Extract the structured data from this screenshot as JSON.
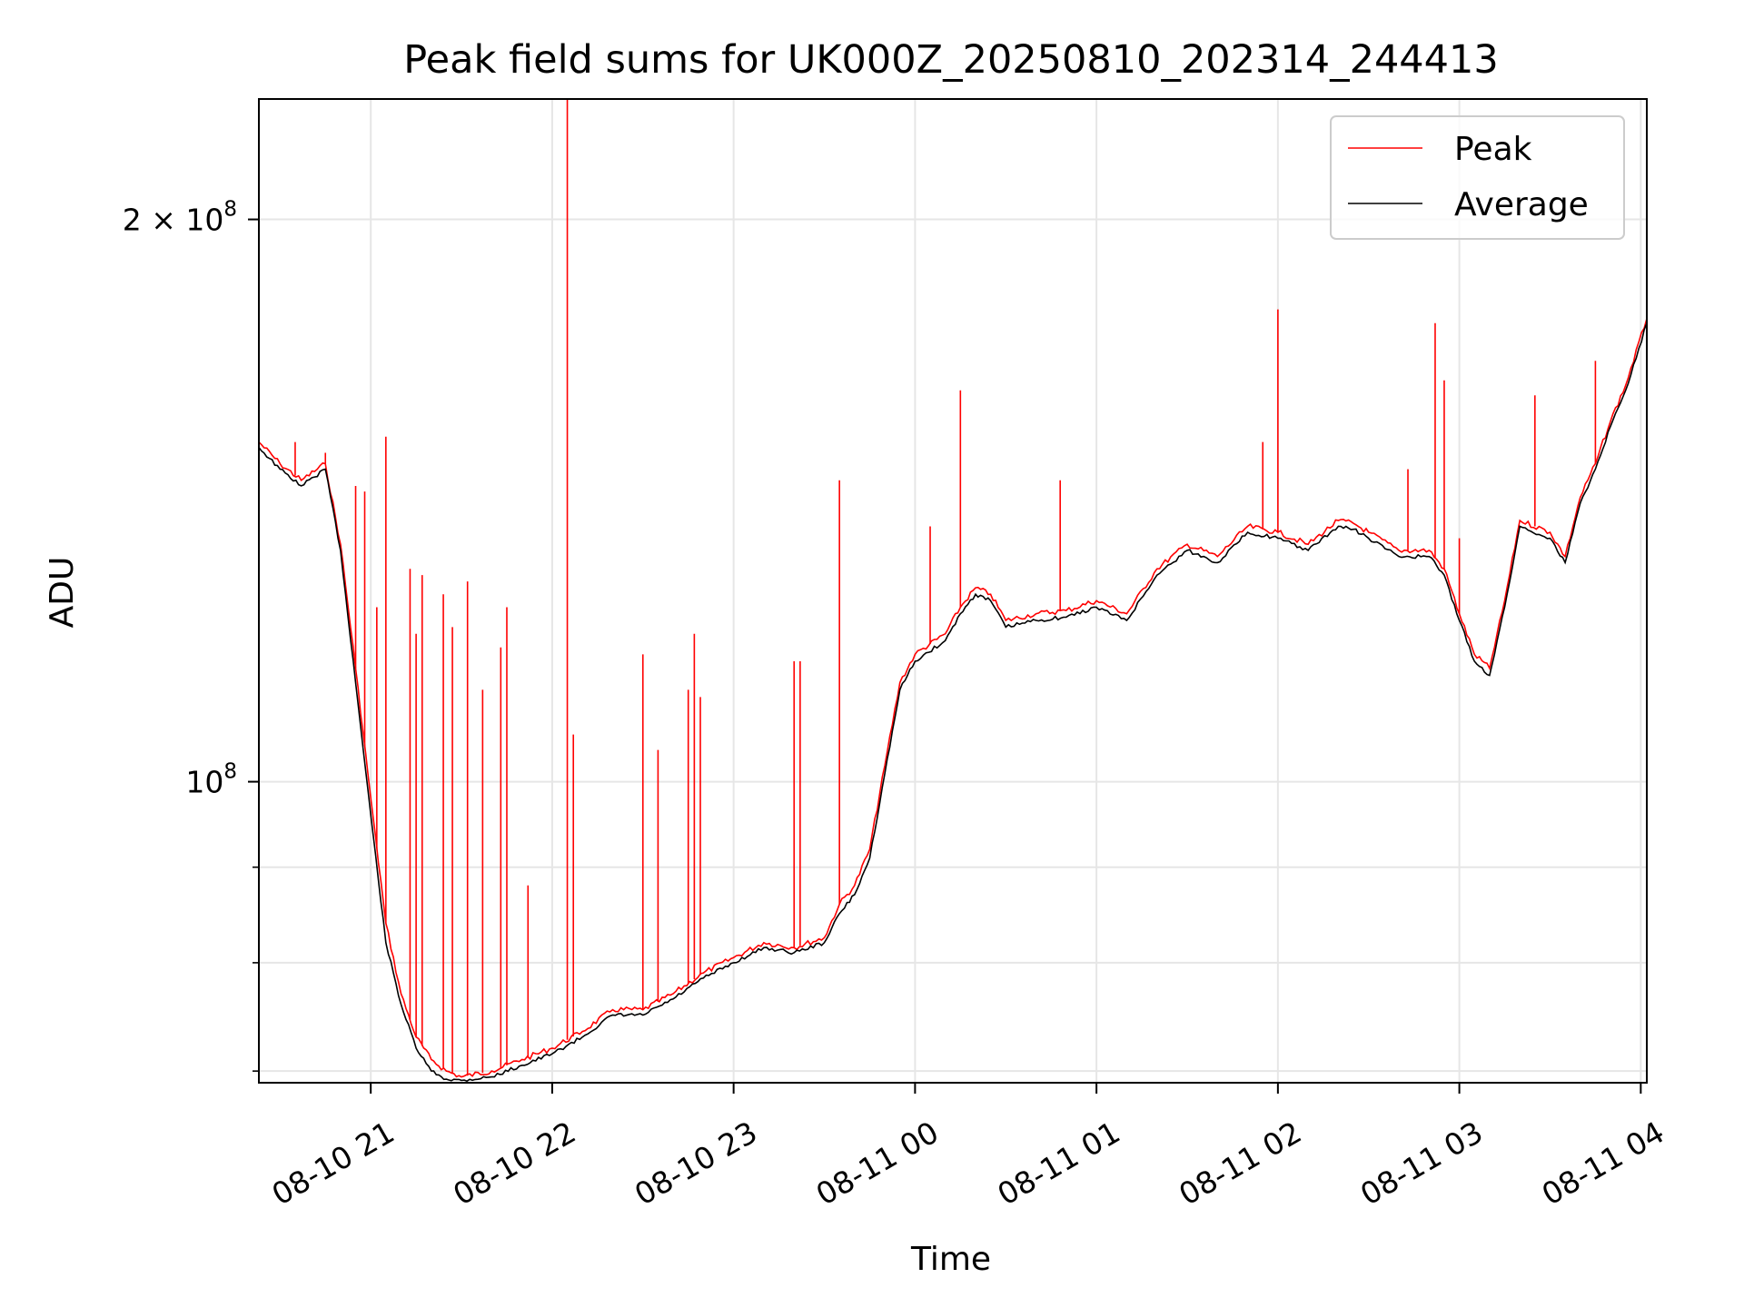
{
  "chart_data": {
    "type": "line",
    "title": "Peak field sums for UK000Z_20250810_202314_244413",
    "xlabel": "Time",
    "ylabel": "ADU",
    "x_range": [
      "2025-08-10 20:23",
      "2025-08-11 04:02"
    ],
    "ylim": [
      69000000,
      232000000
    ],
    "yscale": "log",
    "grid": true,
    "legend_position": "upper-right",
    "x_ticks": [
      "08-10 21",
      "08-10 22",
      "08-10 23",
      "08-11 00",
      "08-11 01",
      "08-11 02",
      "08-11 03",
      "08-11 04"
    ],
    "x_tick_times": [
      "2025-08-10 21:00",
      "2025-08-10 22:00",
      "2025-08-10 23:00",
      "2025-08-11 00:00",
      "2025-08-11 01:00",
      "2025-08-11 02:00",
      "2025-08-11 03:00",
      "2025-08-11 04:00"
    ],
    "y_major_ticks": [
      {
        "value": 100000000,
        "base": "10",
        "exp": "8"
      },
      {
        "value": 200000000,
        "base": "2 × 10",
        "exp": "8"
      }
    ],
    "y_minor_ticks": [
      70000000,
      80000000,
      90000000,
      300000000
    ],
    "series": [
      {
        "name": "Peak",
        "color": "#ff0000",
        "times": [
          "2025-08-10 20:23",
          "2025-08-10 20:30",
          "2025-08-10 20:37",
          "2025-08-10 20:45",
          "2025-08-10 20:50",
          "2025-08-10 20:55",
          "2025-08-10 21:00",
          "2025-08-10 21:05",
          "2025-08-10 21:10",
          "2025-08-10 21:15",
          "2025-08-10 21:20",
          "2025-08-10 21:25",
          "2025-08-10 21:30",
          "2025-08-10 21:40",
          "2025-08-10 21:50",
          "2025-08-10 22:00",
          "2025-08-10 22:10",
          "2025-08-10 22:20",
          "2025-08-10 22:30",
          "2025-08-10 22:40",
          "2025-08-10 22:50",
          "2025-08-10 23:00",
          "2025-08-10 23:10",
          "2025-08-10 23:20",
          "2025-08-10 23:30",
          "2025-08-10 23:35",
          "2025-08-10 23:40",
          "2025-08-10 23:45",
          "2025-08-10 23:50",
          "2025-08-10 23:55",
          "2025-08-11 00:00",
          "2025-08-11 00:10",
          "2025-08-11 00:15",
          "2025-08-11 00:20",
          "2025-08-11 00:25",
          "2025-08-11 00:30",
          "2025-08-11 00:40",
          "2025-08-11 00:50",
          "2025-08-11 01:00",
          "2025-08-11 01:10",
          "2025-08-11 01:20",
          "2025-08-11 01:30",
          "2025-08-11 01:40",
          "2025-08-11 01:50",
          "2025-08-11 02:00",
          "2025-08-11 02:10",
          "2025-08-11 02:20",
          "2025-08-11 02:25",
          "2025-08-11 02:30",
          "2025-08-11 02:40",
          "2025-08-11 02:50",
          "2025-08-11 02:55",
          "2025-08-11 03:00",
          "2025-08-11 03:05",
          "2025-08-11 03:10",
          "2025-08-11 03:15",
          "2025-08-11 03:20",
          "2025-08-11 03:30",
          "2025-08-11 03:35",
          "2025-08-11 03:40",
          "2025-08-11 03:45",
          "2025-08-11 03:50",
          "2025-08-11 03:55",
          "2025-08-11 04:02"
        ],
        "values": [
          152000000,
          148000000,
          145000000,
          148000000,
          134000000,
          115000000,
          98000000,
          84000000,
          77000000,
          73000000,
          71000000,
          70000000,
          69500000,
          70000000,
          71000000,
          72000000,
          73500000,
          75500000,
          75500000,
          77000000,
          79000000,
          80500000,
          82000000,
          81500000,
          82500000,
          86000000,
          88000000,
          92000000,
          102000000,
          113000000,
          117000000,
          120000000,
          124000000,
          127000000,
          126000000,
          122000000,
          123000000,
          123500000,
          125000000,
          123000000,
          130000000,
          134000000,
          132000000,
          137000000,
          136000000,
          134000000,
          138000000,
          137500000,
          136000000,
          133000000,
          133000000,
          130000000,
          123000000,
          117000000,
          115000000,
          125000000,
          138000000,
          136000000,
          132000000,
          142000000,
          148000000,
          156000000,
          163000000,
          177000000
        ]
      },
      {
        "name": "Average",
        "color": "#000000",
        "times": [
          "2025-08-10 20:23",
          "2025-08-10 20:30",
          "2025-08-10 20:37",
          "2025-08-10 20:45",
          "2025-08-10 20:50",
          "2025-08-10 20:55",
          "2025-08-10 21:00",
          "2025-08-10 21:05",
          "2025-08-10 21:10",
          "2025-08-10 21:15",
          "2025-08-10 21:20",
          "2025-08-10 21:25",
          "2025-08-10 21:30",
          "2025-08-10 21:40",
          "2025-08-10 21:50",
          "2025-08-10 22:00",
          "2025-08-10 22:10",
          "2025-08-10 22:20",
          "2025-08-10 22:30",
          "2025-08-10 22:40",
          "2025-08-10 22:50",
          "2025-08-10 23:00",
          "2025-08-10 23:10",
          "2025-08-10 23:20",
          "2025-08-10 23:30",
          "2025-08-10 23:35",
          "2025-08-10 23:40",
          "2025-08-10 23:45",
          "2025-08-10 23:50",
          "2025-08-10 23:55",
          "2025-08-11 00:00",
          "2025-08-11 00:10",
          "2025-08-11 00:15",
          "2025-08-11 00:20",
          "2025-08-11 00:25",
          "2025-08-11 00:30",
          "2025-08-11 00:40",
          "2025-08-11 00:50",
          "2025-08-11 01:00",
          "2025-08-11 01:10",
          "2025-08-11 01:20",
          "2025-08-11 01:30",
          "2025-08-11 01:40",
          "2025-08-11 01:50",
          "2025-08-11 02:00",
          "2025-08-11 02:10",
          "2025-08-11 02:20",
          "2025-08-11 02:25",
          "2025-08-11 02:30",
          "2025-08-11 02:40",
          "2025-08-11 02:50",
          "2025-08-11 02:55",
          "2025-08-11 03:00",
          "2025-08-11 03:05",
          "2025-08-11 03:10",
          "2025-08-11 03:15",
          "2025-08-11 03:20",
          "2025-08-11 03:30",
          "2025-08-11 03:35",
          "2025-08-11 03:40",
          "2025-08-11 03:45",
          "2025-08-11 03:50",
          "2025-08-11 03:55",
          "2025-08-11 04:02"
        ],
        "values": [
          151000000,
          147000000,
          144000000,
          147000000,
          133000000,
          113000000,
          96000000,
          82000000,
          76000000,
          72000000,
          70000000,
          69300000,
          69200000,
          69500000,
          70500000,
          71500000,
          73000000,
          75000000,
          75000000,
          76500000,
          78500000,
          80000000,
          81500000,
          81000000,
          82000000,
          85000000,
          87000000,
          91000000,
          101000000,
          112000000,
          116000000,
          119000000,
          123000000,
          126000000,
          125000000,
          121000000,
          122000000,
          122500000,
          124000000,
          122000000,
          129000000,
          133000000,
          131000000,
          136000000,
          135000000,
          133000000,
          137000000,
          136500000,
          135000000,
          132000000,
          132000000,
          129000000,
          122000000,
          116000000,
          114000000,
          124000000,
          137000000,
          135000000,
          131000000,
          141000000,
          147000000,
          155000000,
          162000000,
          176000000
        ]
      }
    ],
    "peak_spikes": [
      {
        "time": "2025-08-10 20:35",
        "value": 152000000
      },
      {
        "time": "2025-08-10 20:45",
        "value": 150000000
      },
      {
        "time": "2025-08-10 20:55",
        "value": 144000000
      },
      {
        "time": "2025-08-10 20:58",
        "value": 143000000
      },
      {
        "time": "2025-08-10 21:02",
        "value": 124000000
      },
      {
        "time": "2025-08-10 21:05",
        "value": 153000000
      },
      {
        "time": "2025-08-10 21:13",
        "value": 130000000
      },
      {
        "time": "2025-08-10 21:15",
        "value": 120000000
      },
      {
        "time": "2025-08-10 21:17",
        "value": 129000000
      },
      {
        "time": "2025-08-10 21:24",
        "value": 126000000
      },
      {
        "time": "2025-08-10 21:27",
        "value": 121000000
      },
      {
        "time": "2025-08-10 21:32",
        "value": 128000000
      },
      {
        "time": "2025-08-10 21:37",
        "value": 112000000
      },
      {
        "time": "2025-08-10 21:43",
        "value": 118000000
      },
      {
        "time": "2025-08-10 21:45",
        "value": 124000000
      },
      {
        "time": "2025-08-10 21:52",
        "value": 88000000
      },
      {
        "time": "2025-08-10 22:05",
        "value": 232000000
      },
      {
        "time": "2025-08-10 22:07",
        "value": 106000000
      },
      {
        "time": "2025-08-10 22:30",
        "value": 117000000
      },
      {
        "time": "2025-08-10 22:35",
        "value": 104000000
      },
      {
        "time": "2025-08-10 22:45",
        "value": 112000000
      },
      {
        "time": "2025-08-10 22:47",
        "value": 120000000
      },
      {
        "time": "2025-08-10 22:49",
        "value": 111000000
      },
      {
        "time": "2025-08-10 23:20",
        "value": 116000000
      },
      {
        "time": "2025-08-10 23:22",
        "value": 116000000
      },
      {
        "time": "2025-08-10 23:35",
        "value": 145000000
      },
      {
        "time": "2025-08-11 00:05",
        "value": 137000000
      },
      {
        "time": "2025-08-11 00:15",
        "value": 162000000
      },
      {
        "time": "2025-08-11 00:48",
        "value": 145000000
      },
      {
        "time": "2025-08-11 01:55",
        "value": 152000000
      },
      {
        "time": "2025-08-11 02:00",
        "value": 179000000
      },
      {
        "time": "2025-08-11 02:43",
        "value": 147000000
      },
      {
        "time": "2025-08-11 02:52",
        "value": 176000000
      },
      {
        "time": "2025-08-11 02:55",
        "value": 164000000
      },
      {
        "time": "2025-08-11 03:00",
        "value": 135000000
      },
      {
        "time": "2025-08-11 03:25",
        "value": 161000000
      },
      {
        "time": "2025-08-11 03:45",
        "value": 168000000
      }
    ]
  }
}
